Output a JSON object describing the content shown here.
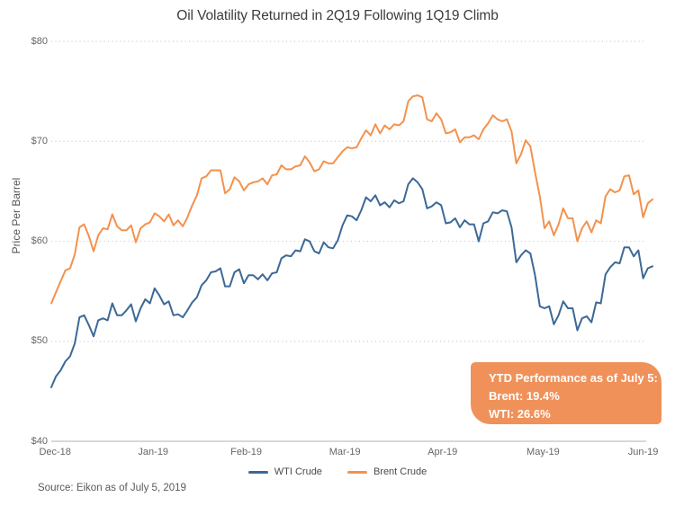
{
  "title": "Oil Volatility Returned in 2Q19 Following 1Q19 Climb",
  "source": "Source: Eikon as of July 5, 2019",
  "annotation": {
    "bg_color": "#F0915A",
    "text_color": "#FFFFFF",
    "lines": {
      "line1": "YTD Performance as of July 5:",
      "line2": "Brent: 19.4%",
      "line3": "WTI: 26.6%"
    }
  },
  "chart_data": {
    "type": "line",
    "title": "Oil Volatility Returned in 2Q19 Following 1Q19 Climb",
    "xlabel": "",
    "ylabel": "Price Per Barrel",
    "ylim": [
      40,
      80
    ],
    "x_range": "daily closes, Dec-18 through July 5, 2019",
    "grid": "horizontal dotted gridlines at $50-$80, solid baseline at $40",
    "legend_position": "bottom center",
    "y_tick_labels": [
      "$80",
      "$70",
      "$60",
      "$50",
      "$40"
    ],
    "y_tick_values": [
      80,
      70,
      60,
      50,
      40
    ],
    "x_tick_labels": [
      "Dec-18",
      "Jan-19",
      "Feb-19",
      "Mar-19",
      "Apr-19",
      "May-19",
      "Jun-19"
    ],
    "x_tick_indices": [
      0.8,
      21.7,
      41.5,
      62.5,
      83.3,
      104.7,
      126.0
    ],
    "gridline_color": "#cccccc",
    "axis_line_color": "#b0b0b0",
    "series": [
      {
        "name": "WTI Crude",
        "color": "#3C6996",
        "values": [
          45.4,
          46.5,
          47.1,
          48.0,
          48.5,
          49.8,
          52.4,
          52.6,
          51.6,
          50.5,
          52.1,
          52.3,
          52.1,
          53.8,
          52.6,
          52.6,
          53.1,
          53.7,
          52.0,
          53.3,
          54.2,
          53.8,
          55.3,
          54.6,
          53.7,
          54.0,
          52.6,
          52.7,
          52.4,
          53.1,
          53.9,
          54.4,
          55.6,
          56.1,
          56.9,
          57.0,
          57.3,
          55.5,
          55.5,
          56.9,
          57.2,
          55.8,
          56.6,
          56.6,
          56.2,
          56.7,
          56.1,
          56.8,
          56.9,
          58.3,
          58.6,
          58.5,
          59.1,
          59.0,
          60.2,
          60.0,
          59.0,
          58.8,
          59.9,
          59.4,
          59.3,
          60.1,
          61.6,
          62.6,
          62.5,
          62.1,
          63.1,
          64.4,
          64.0,
          64.6,
          63.6,
          63.9,
          63.4,
          64.1,
          63.8,
          64.0,
          65.7,
          66.3,
          65.9,
          65.2,
          63.3,
          63.5,
          63.9,
          63.6,
          61.8,
          61.9,
          62.3,
          61.4,
          62.1,
          61.7,
          61.7,
          60.0,
          61.8,
          62.0,
          62.9,
          62.8,
          63.1,
          63.0,
          61.4,
          57.9,
          58.6,
          59.1,
          58.8,
          56.6,
          53.5,
          53.3,
          53.5,
          51.7,
          52.6,
          54.0,
          53.3,
          53.3,
          51.1,
          52.3,
          52.5,
          51.9,
          53.9,
          53.8,
          56.7,
          57.4,
          57.9,
          57.8,
          59.4,
          59.4,
          58.5,
          59.1,
          56.3,
          57.3,
          57.5
        ]
      },
      {
        "name": "Brent Crude",
        "color": "#F3924E",
        "values": [
          53.8,
          54.9,
          56.0,
          57.1,
          57.3,
          58.7,
          61.4,
          61.7,
          60.5,
          59.0,
          60.6,
          61.3,
          61.2,
          62.7,
          61.5,
          61.1,
          61.1,
          61.6,
          59.9,
          61.3,
          61.7,
          61.9,
          62.8,
          62.5,
          62.0,
          62.7,
          61.6,
          62.1,
          61.5,
          62.4,
          63.6,
          64.6,
          66.3,
          66.5,
          67.1,
          67.1,
          67.1,
          64.8,
          65.2,
          66.4,
          66.0,
          65.1,
          65.7,
          65.9,
          66.0,
          66.3,
          65.7,
          66.6,
          66.7,
          67.6,
          67.2,
          67.2,
          67.5,
          67.6,
          68.5,
          67.9,
          67.0,
          67.2,
          68.0,
          67.8,
          67.8,
          68.4,
          69.0,
          69.4,
          69.3,
          69.4,
          70.3,
          71.1,
          70.6,
          71.7,
          70.8,
          71.6,
          71.2,
          71.7,
          71.6,
          72.0,
          74.0,
          74.5,
          74.6,
          74.4,
          72.2,
          72.0,
          72.8,
          72.2,
          70.8,
          70.9,
          71.2,
          69.9,
          70.4,
          70.4,
          70.6,
          70.2,
          71.2,
          71.8,
          72.6,
          72.2,
          72.0,
          72.2,
          71.0,
          67.8,
          68.7,
          70.1,
          69.5,
          66.9,
          64.5,
          61.3,
          62.0,
          60.6,
          61.7,
          63.3,
          62.3,
          62.3,
          60.0,
          61.3,
          62.0,
          60.9,
          62.1,
          61.8,
          64.5,
          65.2,
          64.9,
          65.1,
          66.5,
          66.6,
          64.7,
          65.1,
          62.4,
          63.8,
          64.2
        ]
      }
    ]
  }
}
